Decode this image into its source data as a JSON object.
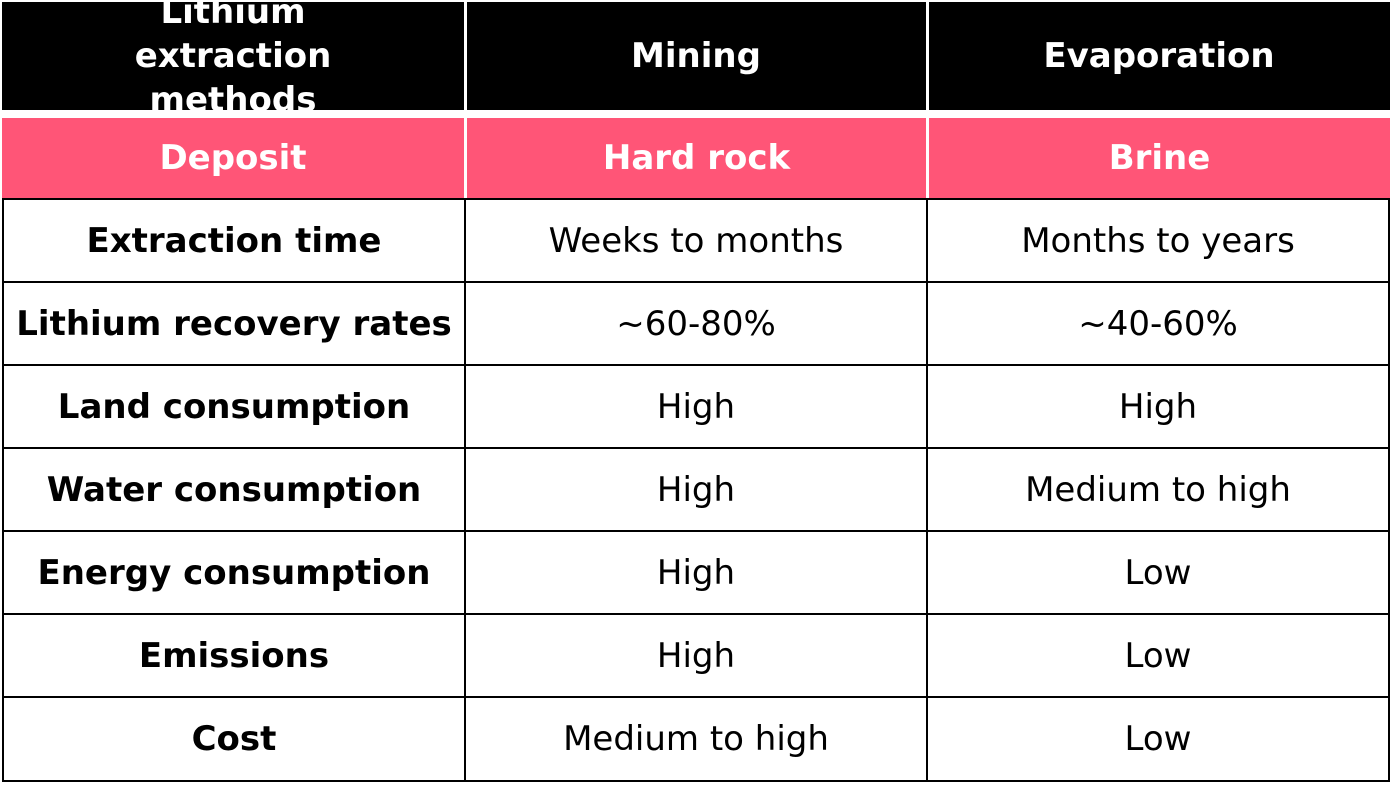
{
  "table": {
    "header": {
      "col0": "Lithium extraction methods",
      "col1": "Mining",
      "col2": "Evaporation"
    },
    "deposit": {
      "col0": "Deposit",
      "col1": "Hard rock",
      "col2": "Brine"
    },
    "rows": [
      {
        "label": "Extraction time",
        "mining": "Weeks to months",
        "evaporation": "Months to years"
      },
      {
        "label": "Lithium recovery rates",
        "mining": "~60-80%",
        "evaporation": "~40-60%"
      },
      {
        "label": "Land consumption",
        "mining": "High",
        "evaporation": "High"
      },
      {
        "label": "Water consumption",
        "mining": "High",
        "evaporation": "Medium to high"
      },
      {
        "label": "Energy consumption",
        "mining": "High",
        "evaporation": "Low"
      },
      {
        "label": "Emissions",
        "mining": "High",
        "evaporation": "Low"
      },
      {
        "label": "Cost",
        "mining": "Medium to high",
        "evaporation": "Low"
      }
    ]
  },
  "colors": {
    "header_bg": "#000000",
    "deposit_bg": "#ff5577",
    "border": "#000000",
    "text_light": "#ffffff",
    "text_dark": "#000000"
  }
}
